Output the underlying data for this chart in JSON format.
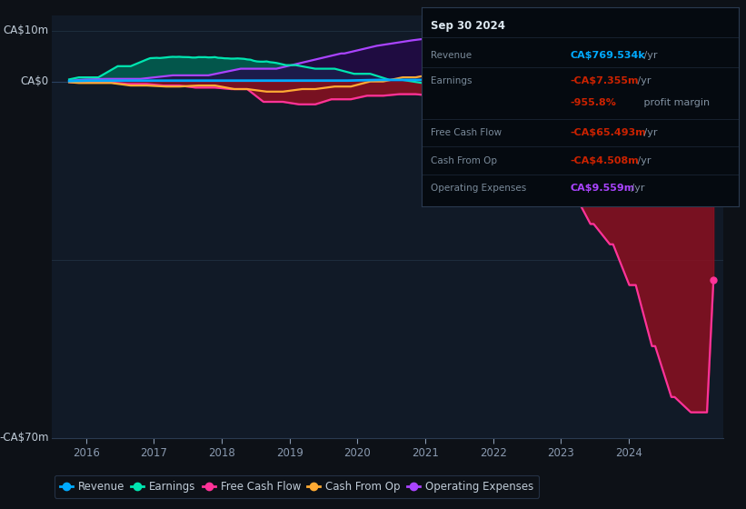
{
  "bg_color": "#0d1117",
  "plot_bg_color": "#111a27",
  "grid_color": "#1e2d3d",
  "ylim": [
    -70,
    13
  ],
  "xlim": [
    2015.5,
    2025.4
  ],
  "xticks": [
    2016,
    2017,
    2018,
    2019,
    2020,
    2021,
    2022,
    2023,
    2024
  ],
  "series_colors": {
    "revenue": "#00aaff",
    "earnings": "#00e5b0",
    "free_cash_flow": "#ff3399",
    "cash_from_op": "#ffaa33",
    "operating_expenses": "#aa44ff"
  },
  "fill_colors": {
    "earnings_pos": "#006655",
    "earnings_neg": "#7a1020",
    "free_cash_flow": "#8b1020",
    "operating_expenses": "#25084a"
  },
  "info_box_bg": "#050a10",
  "info_box_border": "#2a3a50",
  "legend_bg": "#0d1117",
  "legend_border": "#2a3a50"
}
